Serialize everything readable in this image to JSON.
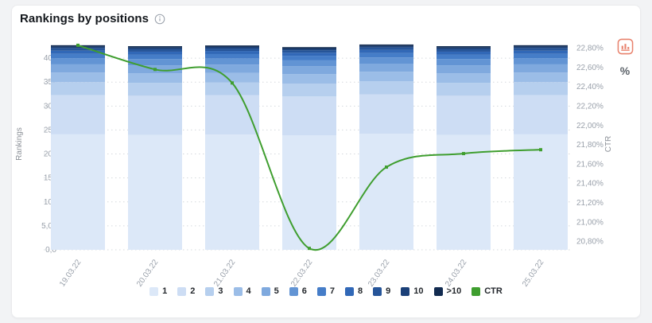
{
  "header": {
    "title": "Rankings by positions",
    "tools": {
      "chart_type_icon": "bar-chart-icon",
      "chart_type_color": "#e8826d",
      "percent_label": "%"
    }
  },
  "chart_data": {
    "type": "combo-stacked-bar-line",
    "categories": [
      "19.03.22",
      "20.03.22",
      "21.03.22",
      "22.03.22",
      "23.03.22",
      "24.03.22",
      "25.03.22"
    ],
    "bar_series": [
      {
        "name": "1",
        "color": "#dce8f8",
        "values": [
          24100,
          24000,
          24050,
          23900,
          24200,
          24000,
          24100
        ]
      },
      {
        "name": "2",
        "color": "#cdddf4",
        "values": [
          8200,
          8150,
          8200,
          8100,
          8250,
          8150,
          8200
        ]
      },
      {
        "name": "3",
        "color": "#b6cfee",
        "values": [
          2700,
          2700,
          2700,
          2650,
          2700,
          2700,
          2700
        ]
      },
      {
        "name": "4",
        "color": "#9bbde7",
        "values": [
          2000,
          2000,
          2000,
          2000,
          2000,
          2000,
          2000
        ]
      },
      {
        "name": "5",
        "color": "#7fa9de",
        "values": [
          1700,
          1650,
          1700,
          1650,
          1700,
          1650,
          1700
        ]
      },
      {
        "name": "6",
        "color": "#6294d4",
        "values": [
          1300,
          1300,
          1300,
          1300,
          1300,
          1300,
          1300
        ]
      },
      {
        "name": "7",
        "color": "#457dc8",
        "values": [
          900,
          900,
          900,
          900,
          900,
          900,
          900
        ]
      },
      {
        "name": "8",
        "color": "#3168b7",
        "values": [
          650,
          650,
          650,
          650,
          650,
          650,
          650
        ]
      },
      {
        "name": "9",
        "color": "#265599",
        "values": [
          500,
          500,
          500,
          500,
          500,
          500,
          500
        ]
      },
      {
        "name": "10",
        "color": "#1b4078",
        "values": [
          350,
          350,
          350,
          350,
          350,
          350,
          350
        ]
      },
      {
        "name": ">10",
        "color": "#122b50",
        "values": [
          300,
          300,
          300,
          300,
          300,
          300,
          300
        ]
      }
    ],
    "line_series": {
      "name": "CTR",
      "color": "#3f9e2f",
      "unit": "%",
      "values": [
        22.83,
        22.58,
        22.44,
        20.73,
        21.57,
        21.71,
        21.75
      ]
    },
    "left_axis": {
      "label": "Rankings",
      "min": 0,
      "max": 44000,
      "tick_values": [
        0,
        5000,
        10000,
        15000,
        20000,
        25000,
        30000,
        35000,
        40000
      ],
      "tick_labels": [
        "0,0",
        "5,0k",
        "10k",
        "15k",
        "20k",
        "25k",
        "30k",
        "35k",
        "40k"
      ]
    },
    "right_axis": {
      "label": "CTR",
      "min": 20.715,
      "max": 22.895,
      "tick_values": [
        22.8,
        22.6,
        22.4,
        22.2,
        22.0,
        21.8,
        21.6,
        21.4,
        21.2,
        21.0,
        20.8
      ],
      "tick_labels": [
        "22,80%",
        "22,60%",
        "22,40%",
        "22,20%",
        "22,00%",
        "21,80%",
        "21,60%",
        "21,40%",
        "21,20%",
        "21,00%",
        "20,80%"
      ]
    },
    "grid": "horizontal-dotted",
    "grid_color": "#d5d9de",
    "tick_color": "#9aa1ab",
    "legend_position": "bottom"
  }
}
